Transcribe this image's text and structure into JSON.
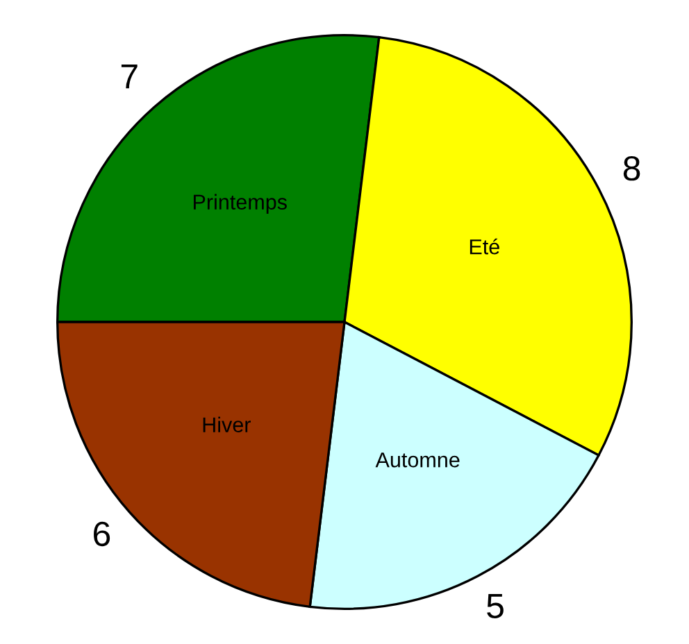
{
  "chart_data": {
    "type": "pie",
    "categories": [
      "Printemps",
      "Eté",
      "Automne",
      "Hiver"
    ],
    "values": [
      7,
      8,
      5,
      6
    ],
    "colors": [
      "#008000",
      "#ffff00",
      "#ccffff",
      "#993300"
    ],
    "data_labels": true,
    "legend": false
  }
}
